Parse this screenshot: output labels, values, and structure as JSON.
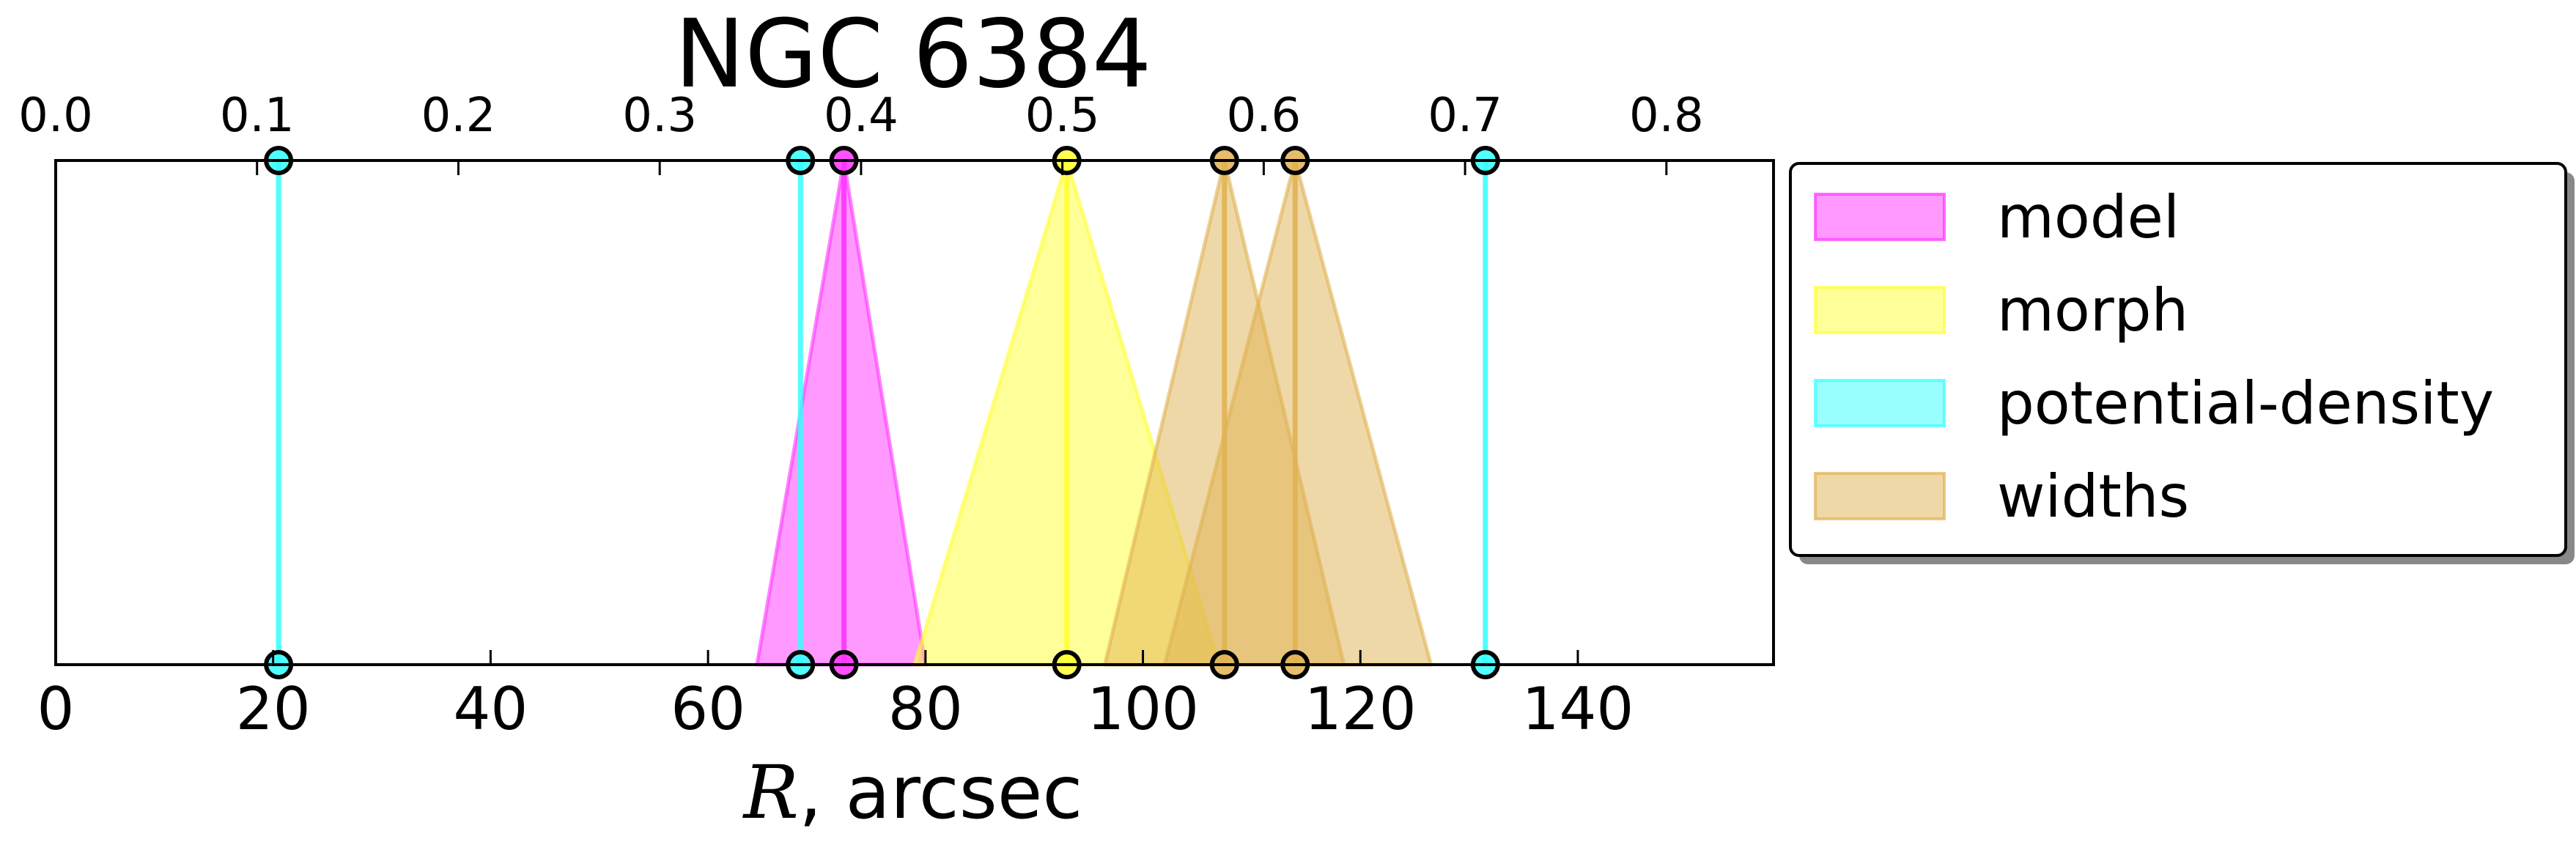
{
  "chart_data": {
    "type": "area",
    "title": "NGC 6384",
    "xlabel_italic": "R",
    "xlabel_rest": ", arcsec",
    "xlim": [
      0,
      158
    ],
    "ylim": [
      0,
      1
    ],
    "xticks": [
      0,
      20,
      40,
      60,
      80,
      100,
      120,
      140
    ],
    "xtick_labels": [
      "0",
      "20",
      "40",
      "60",
      "80",
      "100",
      "120",
      "140"
    ],
    "top_axis": {
      "scale_factor": 0.0054,
      "ticks": [
        0.0,
        0.1,
        0.2,
        0.3,
        0.4,
        0.5,
        0.6,
        0.7,
        0.8
      ],
      "tick_labels": [
        "0.0",
        "0.1",
        "0.2",
        "0.3",
        "0.4",
        "0.5",
        "0.6",
        "0.7",
        "0.8"
      ]
    },
    "grid": false,
    "legend_position": "right",
    "legend": [
      "model",
      "morph",
      "potential-density",
      "widths"
    ],
    "series": [
      {
        "name": "model",
        "color": "#ff33ff",
        "triangles": [
          {
            "center": 72.5,
            "low": 64.5,
            "high": 80
          }
        ]
      },
      {
        "name": "morph",
        "color": "#ffff33",
        "triangles": [
          {
            "center": 93,
            "low": 79,
            "high": 107
          }
        ]
      },
      {
        "name": "potential-density",
        "color": "#33ffff",
        "lines": [
          20.5,
          68.5,
          131.5
        ]
      },
      {
        "name": "widths",
        "color": "#e0b252",
        "triangles": [
          {
            "center": 107.5,
            "low": 96.5,
            "high": 118.5
          },
          {
            "center": 114,
            "low": 102,
            "high": 126.5
          }
        ]
      }
    ]
  }
}
